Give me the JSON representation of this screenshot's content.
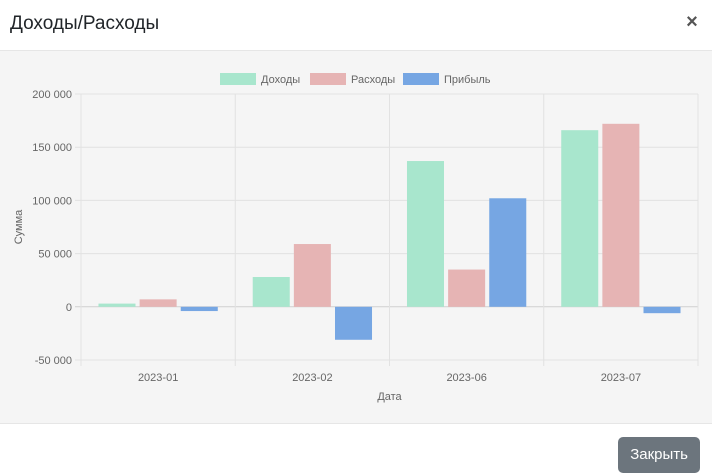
{
  "modal": {
    "title": "Доходы/Расходы",
    "close_glyph": "×",
    "footer_button_label": "Закрыть"
  },
  "chart_data": {
    "type": "bar",
    "categories": [
      "2023-01",
      "2023-02",
      "2023-06",
      "2023-07"
    ],
    "series": [
      {
        "name": "Доходы",
        "color": "#a8e6cd",
        "values": [
          3000,
          28000,
          137000,
          166000
        ]
      },
      {
        "name": "Расходы",
        "color": "#e6b4b4",
        "values": [
          7000,
          59000,
          35000,
          172000
        ]
      },
      {
        "name": "Прибыль",
        "color": "#76a6e3",
        "values": [
          -4000,
          -31000,
          102000,
          -6000
        ]
      }
    ],
    "xlabel": "Дата",
    "ylabel": "Сумма",
    "ylim": [
      -50000,
      200000
    ],
    "yticks": [
      -50000,
      0,
      50000,
      100000,
      150000,
      200000
    ],
    "ytick_labels": [
      "-50 000",
      "0",
      "50 000",
      "100 000",
      "150 000",
      "200 000"
    ],
    "legend_position": "top",
    "grid": true
  }
}
